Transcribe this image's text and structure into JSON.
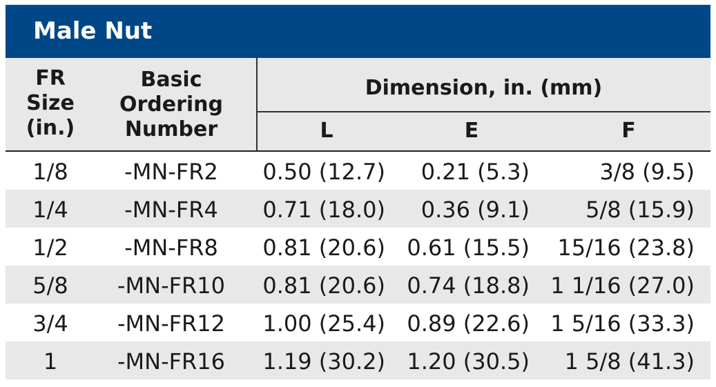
{
  "table": {
    "title": "Male Nut",
    "headers": {
      "fr_size": [
        "FR",
        "Size",
        "(in.)"
      ],
      "basic_ordering": [
        "Basic",
        "Ordering",
        "Number"
      ],
      "dimension": "Dimension, in. (mm)",
      "col_l": "L",
      "col_e": "E",
      "col_f": "F"
    },
    "rows": [
      {
        "size": "1/8",
        "number": "-MN-FR2",
        "l": "0.50 (12.7)",
        "e": "0.21 (5.3)",
        "f": "3/8 (9.5)"
      },
      {
        "size": "1/4",
        "number": "-MN-FR4",
        "l": "0.71 (18.0)",
        "e": "0.36 (9.1)",
        "f": "5/8 (15.9)"
      },
      {
        "size": "1/2",
        "number": "-MN-FR8",
        "l": "0.81 (20.6)",
        "e": "0.61 (15.5)",
        "f": "15/16 (23.8)"
      },
      {
        "size": "5/8",
        "number": "-MN-FR10",
        "l": "0.81 (20.6)",
        "e": "0.74 (18.8)",
        "f": "1 1/16 (27.0)"
      },
      {
        "size": "3/4",
        "number": "-MN-FR12",
        "l": "1.00 (25.4)",
        "e": "0.89 (22.6)",
        "f": "1 5/16 (33.3)"
      },
      {
        "size": "1",
        "number": "-MN-FR16",
        "l": "1.19 (30.2)",
        "e": "1.20 (30.5)",
        "f": "1 5/8 (41.3)"
      }
    ]
  },
  "colors": {
    "title_bar": "#004787",
    "header_bg": "#e8e8e9",
    "alt_row_bg": "#e8e8e9"
  }
}
